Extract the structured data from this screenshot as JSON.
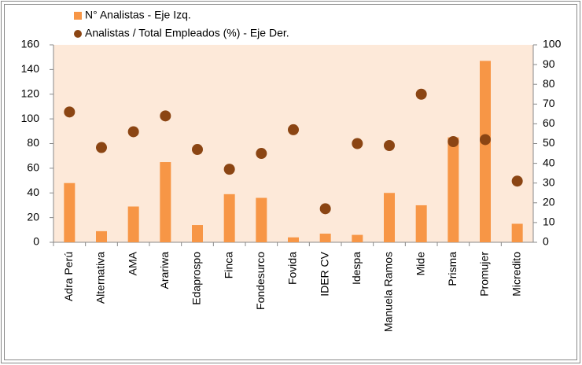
{
  "chart_data": {
    "type": "bar",
    "categories": [
      "Adra Perú",
      "Alternativa",
      "AMA",
      "Arariwa",
      "Edaprospo",
      "Finca",
      "Fondesurco",
      "Fovida",
      "IDER CV",
      "Idespa",
      "Manuela Ramos",
      "Mide",
      "Prisma",
      "Promujer",
      "Micredito"
    ],
    "series": [
      {
        "name": "N° Analistas - Eje Izq.",
        "color": "#f79646",
        "type": "bar",
        "values": [
          48,
          9,
          29,
          65,
          14,
          39,
          36,
          4,
          7,
          6,
          40,
          30,
          85,
          147,
          15
        ]
      },
      {
        "name": "Analistas / Total Empleados (%) - Eje Der.",
        "color": "#8b4513",
        "type": "scatter",
        "axis": "y2",
        "values": [
          66,
          48,
          56,
          64,
          47,
          37,
          45,
          57,
          17,
          50,
          49,
          75,
          51,
          52,
          31
        ]
      }
    ],
    "ylim": [
      0,
      160
    ],
    "yticks": [
      0,
      20,
      40,
      60,
      80,
      100,
      120,
      140,
      160
    ],
    "y2lim": [
      0,
      100
    ],
    "y2ticks": [
      0,
      10,
      20,
      30,
      40,
      50,
      60,
      70,
      80,
      90,
      100
    ],
    "plot_background": "#fde9d9",
    "legend": "top"
  }
}
